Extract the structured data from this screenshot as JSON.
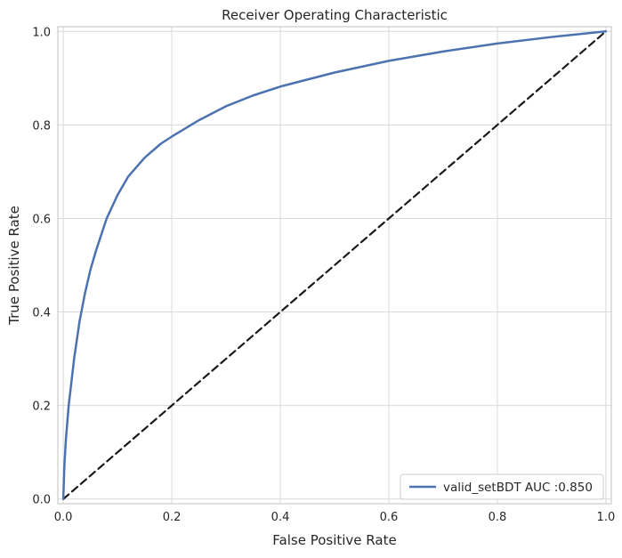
{
  "chart_data": {
    "type": "line",
    "title": "Receiver Operating Characteristic",
    "xlabel": "False Positive Rate",
    "ylabel": "True Positive Rate",
    "xlim": [
      -0.01,
      1.01
    ],
    "ylim": [
      -0.01,
      1.01
    ],
    "xticks": [
      "0.0",
      "0.2",
      "0.4",
      "0.6",
      "0.8",
      "1.0"
    ],
    "yticks": [
      "0.0",
      "0.2",
      "0.4",
      "0.6",
      "0.8",
      "1.0"
    ],
    "grid": true,
    "legend_position": "lower-right",
    "series": [
      {
        "name": "valid_setBDT AUC :0.850",
        "color": "#4c72b0",
        "style": "solid",
        "x": [
          0.0,
          0.002,
          0.005,
          0.01,
          0.02,
          0.03,
          0.04,
          0.05,
          0.06,
          0.08,
          0.1,
          0.12,
          0.15,
          0.18,
          0.2,
          0.25,
          0.3,
          0.35,
          0.4,
          0.5,
          0.6,
          0.7,
          0.8,
          0.9,
          1.0
        ],
        "y": [
          0.0,
          0.07,
          0.13,
          0.2,
          0.3,
          0.38,
          0.44,
          0.49,
          0.53,
          0.6,
          0.65,
          0.69,
          0.73,
          0.76,
          0.775,
          0.81,
          0.84,
          0.863,
          0.882,
          0.912,
          0.937,
          0.957,
          0.974,
          0.988,
          1.0
        ]
      },
      {
        "name": "",
        "color": "#1a1a1a",
        "style": "dashed",
        "x": [
          0.0,
          1.0
        ],
        "y": [
          0.0,
          1.0
        ]
      }
    ]
  }
}
